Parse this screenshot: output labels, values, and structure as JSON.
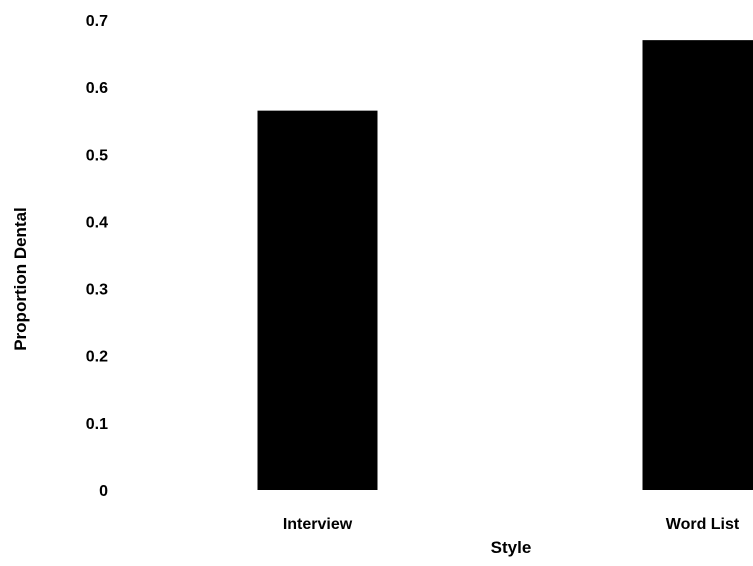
{
  "chart_data": {
    "type": "bar",
    "categories": [
      "Interview",
      "Word List"
    ],
    "values": [
      0.565,
      0.67
    ],
    "xlabel": "Style",
    "ylabel": "Proportion Dental",
    "ylim": [
      0,
      0.7
    ],
    "yticks": [
      "0",
      "0.1",
      "0.2",
      "0.3",
      "0.4",
      "0.5",
      "0.6",
      "0.7"
    ],
    "grid": false,
    "legend": "none",
    "colors": {
      "bar": "#000000",
      "text": "#000000",
      "background": "#ffffff"
    }
  }
}
